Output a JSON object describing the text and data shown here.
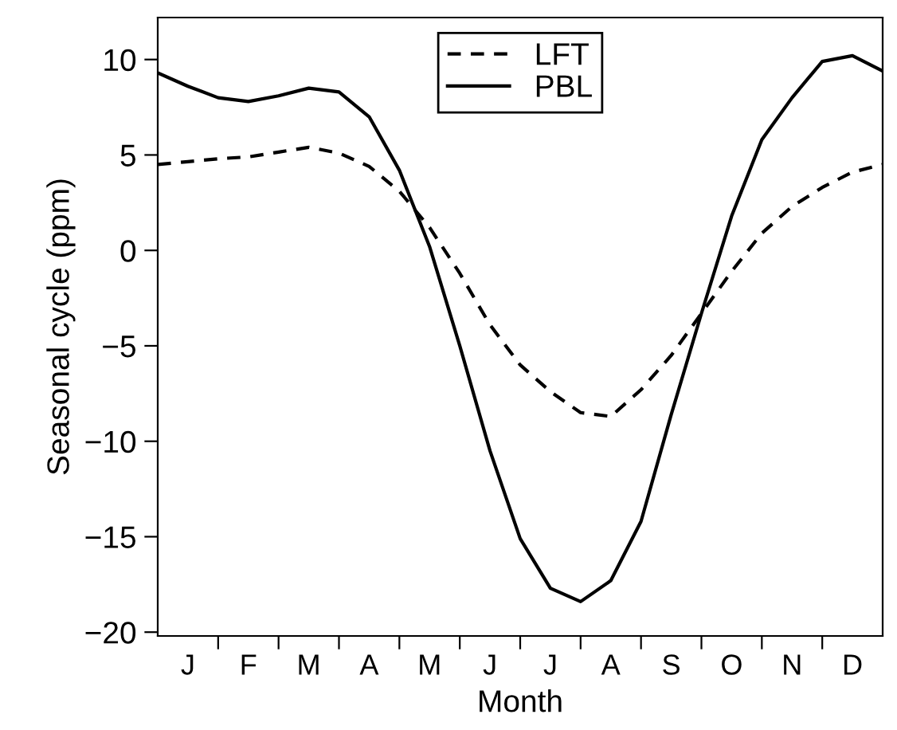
{
  "chart_data": {
    "type": "line",
    "xlabel": "Month",
    "ylabel": "Seasonal cycle (ppm)",
    "categories": [
      null,
      "J",
      null,
      "F",
      null,
      "M",
      null,
      "A",
      null,
      "M",
      null,
      "J",
      null,
      "J",
      null,
      "A",
      null,
      "S",
      null,
      "O",
      null,
      "N",
      null,
      "D",
      null
    ],
    "ylim": [
      -20.2,
      12.2
    ],
    "yticks": [
      -20,
      -15,
      -10,
      -5,
      0,
      5,
      10
    ],
    "legend": "top",
    "series": [
      {
        "name": "LFT",
        "color": "#000000",
        "line_style": "dashed",
        "values": [
          4.5,
          4.65,
          4.8,
          4.9,
          5.15,
          5.4,
          5.1,
          4.4,
          3.1,
          1.2,
          -1.2,
          -3.9,
          -6.0,
          -7.4,
          -8.5,
          -8.7,
          -7.3,
          -5.5,
          -3.3,
          -1.1,
          0.9,
          2.3,
          3.3,
          4.1,
          4.5
        ]
      },
      {
        "name": "PBL",
        "color": "#000000",
        "line_style": "solid",
        "values": [
          9.3,
          8.6,
          8.0,
          7.8,
          8.1,
          8.5,
          8.3,
          7.0,
          4.2,
          0.2,
          -5.0,
          -10.5,
          -15.1,
          -17.7,
          -18.4,
          -17.3,
          -14.2,
          -8.6,
          -3.3,
          1.8,
          5.8,
          8.0,
          9.9,
          10.2,
          9.4
        ]
      }
    ]
  }
}
